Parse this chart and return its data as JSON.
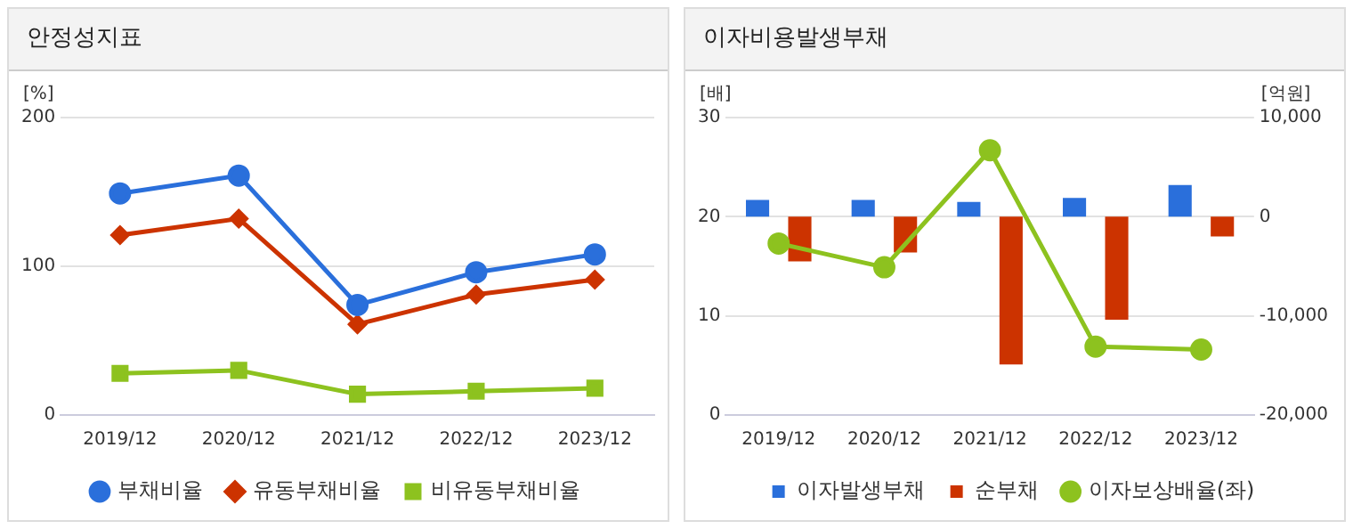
{
  "chart_data": [
    {
      "type": "line",
      "title": "안정성지표",
      "ylabel": "[%]",
      "categories": [
        "2019/12",
        "2020/12",
        "2021/12",
        "2022/12",
        "2023/12"
      ],
      "series": [
        {
          "name": "부채비율",
          "color": "#2a6fdb",
          "marker": "circle",
          "values": [
            149,
            161,
            74,
            96,
            108
          ]
        },
        {
          "name": "유동부채비율",
          "color": "#cc3300",
          "marker": "diamond",
          "values": [
            121,
            132,
            61,
            81,
            91
          ]
        },
        {
          "name": "비유동부채비율",
          "color": "#8dc21f",
          "marker": "square",
          "values": [
            28,
            30,
            14,
            16,
            18
          ]
        }
      ],
      "ylim": [
        0,
        200
      ],
      "yticks": [
        0,
        100,
        200
      ],
      "grid": "y",
      "legend": "bottom"
    },
    {
      "type": "bar",
      "title": "이자비용발생부채",
      "ylabel": "[배]",
      "y2label": "[억원]",
      "categories": [
        "2019/12",
        "2020/12",
        "2021/12",
        "2022/12",
        "2023/12"
      ],
      "series": [
        {
          "name": "이자발생부채",
          "color": "#2a6fdb",
          "axis": "y2",
          "values": [
            1700,
            1700,
            1500,
            1900,
            3200
          ]
        },
        {
          "name": "순부채",
          "color": "#cc3300",
          "axis": "y2",
          "values": [
            -4500,
            -3600,
            -14900,
            -10400,
            -2000
          ]
        },
        {
          "name": "이자보상배율(좌)",
          "type": "line",
          "color": "#8dc21f",
          "axis": "y",
          "marker": "circle",
          "values": [
            17.3,
            14.9,
            26.7,
            6.9,
            6.6
          ]
        }
      ],
      "ylim": [
        0,
        30
      ],
      "yticks": [
        0,
        10,
        20,
        30
      ],
      "y2lim": [
        -20000,
        10000
      ],
      "y2ticks": [
        {
          "value": -20000,
          "label": "-20,000"
        },
        {
          "value": -10000,
          "label": "-10,000"
        },
        0,
        {
          "value": 10000,
          "label": "10,000"
        }
      ],
      "grid": "y",
      "legend": "bottom"
    }
  ]
}
